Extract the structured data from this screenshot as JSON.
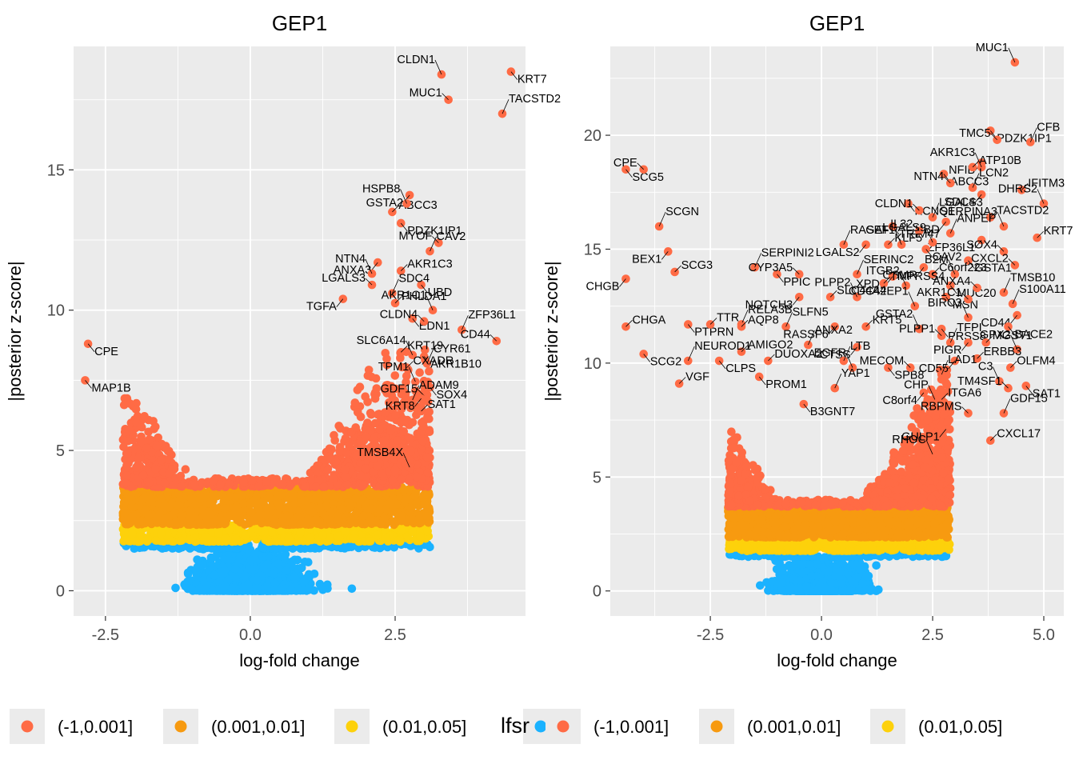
{
  "colors": {
    "panel_bg": "#EBEBEB",
    "grid": "#FFFFFF",
    "bin1": "#FF6B45",
    "bin2": "#F79A10",
    "bin3": "#FDD10B",
    "bin4": "#1AB2FF"
  },
  "legend": {
    "title": "lfsr",
    "entries": [
      "(-1,0.001]",
      "(0.001,0.01]",
      "(0.01,0.05]",
      ""
    ],
    "colors": [
      "#FF6B45",
      "#F79A10",
      "#FDD10B",
      "#1AB2FF"
    ]
  },
  "chart_data": [
    {
      "type": "scatter",
      "title": "GEP1",
      "xlabel": "log-fold change",
      "ylabel": "|posterior z-score|",
      "xlim": [
        -3.05,
        4.75
      ],
      "ylim": [
        -0.9,
        19.4
      ],
      "xticks": [
        -2.5,
        0.0,
        2.5
      ],
      "xtick_labels": [
        "-2.5",
        "0.0",
        "2.5"
      ],
      "yticks": [
        0,
        5,
        10,
        15
      ],
      "ytick_labels": [
        "0",
        "5",
        "10",
        "15"
      ],
      "grid": true,
      "cloud": {
        "seed": 11,
        "left_extent": 2.0,
        "right_extent": 2.9,
        "side_height": 7.5,
        "spread": 1.3
      },
      "labeled_points": [
        {
          "label": "CLDN1",
          "x": 3.3,
          "y": 18.4
        },
        {
          "label": "KRT7",
          "x": 4.5,
          "y": 18.5
        },
        {
          "label": "MUC1",
          "x": 3.42,
          "y": 17.5
        },
        {
          "label": "TACSTD2",
          "x": 4.35,
          "y": 17.0
        },
        {
          "label": "GSTA2",
          "x": 2.75,
          "y": 14.1
        },
        {
          "label": "ABCC3",
          "x": 2.45,
          "y": 13.5
        },
        {
          "label": "HSPB8",
          "x": 2.7,
          "y": 13.8
        },
        {
          "label": "PDZK1IP1",
          "x": 2.6,
          "y": 13.1
        },
        {
          "label": "MYOF",
          "x": 3.25,
          "y": 12.4
        },
        {
          "label": "CAV2",
          "x": 3.1,
          "y": 12.1
        },
        {
          "label": "ANXA3",
          "x": 2.2,
          "y": 11.7
        },
        {
          "label": "AKR1C3",
          "x": 2.6,
          "y": 11.4
        },
        {
          "label": "NTN4",
          "x": 2.1,
          "y": 11.3
        },
        {
          "label": "UBD",
          "x": 2.95,
          "y": 10.9
        },
        {
          "label": "LGALS3",
          "x": 2.1,
          "y": 10.9
        },
        {
          "label": "SDC4",
          "x": 2.45,
          "y": 10.6
        },
        {
          "label": "TGFA",
          "x": 1.6,
          "y": 10.4
        },
        {
          "label": "PHLDA1",
          "x": 2.5,
          "y": 10.25
        },
        {
          "label": "AKR1C1",
          "x": 3.15,
          "y": 10.0
        },
        {
          "label": "EDN1",
          "x": 2.8,
          "y": 9.7
        },
        {
          "label": "CLDN4",
          "x": 3.0,
          "y": 9.6
        },
        {
          "label": "ZFP36L1",
          "x": 3.65,
          "y": 9.3
        },
        {
          "label": "CPE",
          "x": -2.8,
          "y": 8.8
        },
        {
          "label": "KRT19",
          "x": 2.6,
          "y": 8.5
        },
        {
          "label": "SLC6A14",
          "x": 2.8,
          "y": 8.4
        },
        {
          "label": "AKR1B10",
          "x": 3.0,
          "y": 8.35
        },
        {
          "label": "CD44",
          "x": 4.25,
          "y": 8.9
        },
        {
          "label": "CYR61",
          "x": 3.05,
          "y": 8.1
        },
        {
          "label": "MAP1B",
          "x": -2.85,
          "y": 7.5
        },
        {
          "label": "CXADR",
          "x": 2.7,
          "y": 7.95
        },
        {
          "label": "TPM1",
          "x": 2.85,
          "y": 7.45
        },
        {
          "label": "SOX4",
          "x": 3.1,
          "y": 7.25
        },
        {
          "label": "GDF15",
          "x": 3.0,
          "y": 6.95
        },
        {
          "label": "ADAM9",
          "x": 2.8,
          "y": 6.8
        },
        {
          "label": "KRT8",
          "x": 2.95,
          "y": 6.85
        },
        {
          "label": "SAT1",
          "x": 2.95,
          "y": 6.4
        },
        {
          "label": "TMSB4X",
          "x": 2.75,
          "y": 4.4
        }
      ]
    },
    {
      "type": "scatter",
      "title": "GEP1",
      "xlabel": "log-fold change",
      "ylabel": "|posterior z-score|",
      "xlim": [
        -4.75,
        5.45
      ],
      "ylim": [
        -1.1,
        23.9
      ],
      "xticks": [
        -2.5,
        0.0,
        2.5,
        5.0
      ],
      "xtick_labels": [
        "-2.5",
        "0.0",
        "2.5",
        "5.0"
      ],
      "yticks": [
        0,
        5,
        10,
        15,
        20
      ],
      "ytick_labels": [
        "0",
        "5",
        "10",
        "15",
        "20"
      ],
      "grid": true,
      "cloud": {
        "seed": 23,
        "left_extent": 1.9,
        "right_extent": 2.7,
        "side_height": 10.0,
        "spread": 1.3
      },
      "labeled_points": [
        {
          "label": "MUC1",
          "x": 4.35,
          "y": 23.2
        },
        {
          "label": "PDZK1IP1",
          "x": 3.8,
          "y": 20.2
        },
        {
          "label": "TMC5",
          "x": 3.95,
          "y": 19.8
        },
        {
          "label": "CFB",
          "x": 4.7,
          "y": 19.7
        },
        {
          "label": "NFIB",
          "x": 3.6,
          "y": 18.8
        },
        {
          "label": "ATP10B",
          "x": 3.4,
          "y": 18.6
        },
        {
          "label": "AKR1C3",
          "x": 3.6,
          "y": 18.6
        },
        {
          "label": "ABCC3",
          "x": 2.75,
          "y": 18.3
        },
        {
          "label": "NTN4",
          "x": 2.9,
          "y": 17.9
        },
        {
          "label": "LCN2",
          "x": 3.4,
          "y": 17.7
        },
        {
          "label": "SDC4",
          "x": 3.6,
          "y": 17.4
        },
        {
          "label": "IFITM3",
          "x": 4.5,
          "y": 17.6
        },
        {
          "label": "DHRS2",
          "x": 5.0,
          "y": 17.0
        },
        {
          "label": "KCNQ1",
          "x": 1.95,
          "y": 17.0
        },
        {
          "label": "CLDN1",
          "x": 2.2,
          "y": 16.7
        },
        {
          "label": "LGALS3",
          "x": 2.5,
          "y": 16.4
        },
        {
          "label": "UBD",
          "x": 2.8,
          "y": 16.2
        },
        {
          "label": "TACSTD2",
          "x": 3.8,
          "y": 16.4
        },
        {
          "label": "SERPINA3",
          "x": 4.1,
          "y": 16.0
        },
        {
          "label": "TRIM47",
          "x": 1.6,
          "y": 16.0
        },
        {
          "label": "IL32",
          "x": 2.2,
          "y": 15.8
        },
        {
          "label": "ANPEP",
          "x": 2.9,
          "y": 15.7
        },
        {
          "label": "ZFP36L1",
          "x": 3.6,
          "y": 15.4
        },
        {
          "label": "KRT7",
          "x": 4.85,
          "y": 15.5
        },
        {
          "label": "LGALS9",
          "x": 2.5,
          "y": 15.3
        },
        {
          "label": "CAV2",
          "x": 2.35,
          "y": 15.0
        },
        {
          "label": "SOX4",
          "x": 4.1,
          "y": 14.9
        },
        {
          "label": "RASEF",
          "x": 0.5,
          "y": 15.2
        },
        {
          "label": "LGALS2",
          "x": 1.0,
          "y": 15.2
        },
        {
          "label": "KLF5",
          "x": 1.5,
          "y": 15.2
        },
        {
          "label": "GAT1",
          "x": 1.8,
          "y": 15.2
        },
        {
          "label": "GSTA1",
          "x": 3.3,
          "y": 14.5
        },
        {
          "label": "CXCL2",
          "x": 4.35,
          "y": 14.3
        },
        {
          "label": "SERPINI2",
          "x": -1.5,
          "y": 14.2
        },
        {
          "label": "OSMR",
          "x": 2.3,
          "y": 14.2
        },
        {
          "label": "C6orf223",
          "x": 2.5,
          "y": 13.9
        },
        {
          "label": "B2M",
          "x": 3.0,
          "y": 13.9
        },
        {
          "label": "PPIC",
          "x": -1.0,
          "y": 13.9
        },
        {
          "label": "CYP3A5",
          "x": -0.5,
          "y": 13.9
        },
        {
          "label": "SERINC2",
          "x": 0.8,
          "y": 13.9
        },
        {
          "label": "XPD1",
          "x": 1.6,
          "y": 13.8
        },
        {
          "label": "TMPRSS4",
          "x": 1.4,
          "y": 13.5
        },
        {
          "label": "ITGB2",
          "x": 1.9,
          "y": 13.4
        },
        {
          "label": "MUC20",
          "x": 2.9,
          "y": 13.4
        },
        {
          "label": "ANXA4",
          "x": 3.5,
          "y": 13.3
        },
        {
          "label": "TMSB10",
          "x": 4.1,
          "y": 13.1
        },
        {
          "label": "NOTCH3",
          "x": -0.5,
          "y": 12.9
        },
        {
          "label": "SLC44A4",
          "x": 0.2,
          "y": 12.9
        },
        {
          "label": "PLPP2",
          "x": 0.8,
          "y": 12.9
        },
        {
          "label": "MSN",
          "x": 2.8,
          "y": 12.9
        },
        {
          "label": "AKR1C1",
          "x": 3.3,
          "y": 12.8
        },
        {
          "label": "S100A11",
          "x": 4.3,
          "y": 12.6
        },
        {
          "label": "CHGB",
          "x": -4.4,
          "y": 13.7
        },
        {
          "label": "SCG3",
          "x": -3.3,
          "y": 14.0
        },
        {
          "label": "CDC42EP1",
          "x": 2.1,
          "y": 12.5
        },
        {
          "label": "PTPRN",
          "x": -3.0,
          "y": 11.7
        },
        {
          "label": "TTR",
          "x": -2.5,
          "y": 11.7
        },
        {
          "label": "RELA3B",
          "x": -1.8,
          "y": 11.7
        },
        {
          "label": "CD44",
          "x": 4.4,
          "y": 12.1
        },
        {
          "label": "CHGA",
          "x": -4.4,
          "y": 11.6
        },
        {
          "label": "BIRC3",
          "x": 3.3,
          "y": 12.0
        },
        {
          "label": "BACE2",
          "x": 4.2,
          "y": 11.6
        },
        {
          "label": "AQP8",
          "x": -1.8,
          "y": 11.6
        },
        {
          "label": "SLFN5",
          "x": -0.8,
          "y": 11.6
        },
        {
          "label": "RASSF6",
          "x": 0.3,
          "y": 11.6
        },
        {
          "label": "KRT5",
          "x": 1.0,
          "y": 11.6
        },
        {
          "label": "GSTA2",
          "x": 2.2,
          "y": 11.5
        },
        {
          "label": "PRSS8",
          "x": 2.7,
          "y": 11.5
        },
        {
          "label": "PLPP1",
          "x": 2.7,
          "y": 11.2
        },
        {
          "label": "TFPI",
          "x": 2.9,
          "y": 10.9
        },
        {
          "label": "PIGR",
          "x": 3.3,
          "y": 10.9
        },
        {
          "label": "MGST1",
          "x": 3.7,
          "y": 10.9
        },
        {
          "label": "GPX2",
          "x": 4.4,
          "y": 10.6
        },
        {
          "label": "SCG2",
          "x": -4.0,
          "y": 10.4
        },
        {
          "label": "AMIGO2",
          "x": -1.8,
          "y": 10.5
        },
        {
          "label": "ANXA2",
          "x": -0.3,
          "y": 10.8
        },
        {
          "label": "CTSS",
          "x": 0.8,
          "y": 10.7
        },
        {
          "label": "ERBB3",
          "x": 3.5,
          "y": 10.2
        },
        {
          "label": "NEUROD1",
          "x": -3.0,
          "y": 10.1
        },
        {
          "label": "CLPS",
          "x": -2.3,
          "y": 10.1
        },
        {
          "label": "DUOXA2",
          "x": -1.2,
          "y": 10.1
        },
        {
          "label": "LTB",
          "x": 0.5,
          "y": 10.1
        },
        {
          "label": "CD55",
          "x": 3.0,
          "y": 10.1
        },
        {
          "label": "OLFM4",
          "x": 4.25,
          "y": 9.8
        },
        {
          "label": "EGFR",
          "x": 0.7,
          "y": 9.8
        },
        {
          "label": "SPB8",
          "x": 1.5,
          "y": 9.8
        },
        {
          "label": "MECOM",
          "x": 2.0,
          "y": 9.8
        },
        {
          "label": "LAD1",
          "x": 2.7,
          "y": 9.5
        },
        {
          "label": "PROM1",
          "x": -1.4,
          "y": 9.4
        },
        {
          "label": "VGF",
          "x": -3.2,
          "y": 9.1
        },
        {
          "label": "C3",
          "x": 4.0,
          "y": 9.2
        },
        {
          "label": "SAT1",
          "x": 4.6,
          "y": 9.0
        },
        {
          "label": "TM4SF1",
          "x": 4.2,
          "y": 8.9
        },
        {
          "label": "YAP1",
          "x": 0.3,
          "y": 8.9
        },
        {
          "label": "C8orf4",
          "x": 2.3,
          "y": 8.7
        },
        {
          "label": "ITGA6",
          "x": 2.7,
          "y": 8.4
        },
        {
          "label": "CHP",
          "x": 2.55,
          "y": 8.4
        },
        {
          "label": "B3GNT7",
          "x": -0.4,
          "y": 8.2
        },
        {
          "label": "RBPMS",
          "x": 3.3,
          "y": 7.8
        },
        {
          "label": "GDF15",
          "x": 4.1,
          "y": 7.8
        },
        {
          "label": "GULP1",
          "x": 2.8,
          "y": 7.1
        },
        {
          "label": "CXCL17",
          "x": 3.8,
          "y": 6.6
        },
        {
          "label": "RHOC",
          "x": 2.5,
          "y": 6.0
        },
        {
          "label": "SCG5",
          "x": -4.4,
          "y": 18.5
        },
        {
          "label": "CPE",
          "x": -4.0,
          "y": 18.5
        },
        {
          "label": "SCGN",
          "x": -3.65,
          "y": 16.0
        },
        {
          "label": "BEX1",
          "x": -3.45,
          "y": 14.9
        }
      ]
    }
  ]
}
